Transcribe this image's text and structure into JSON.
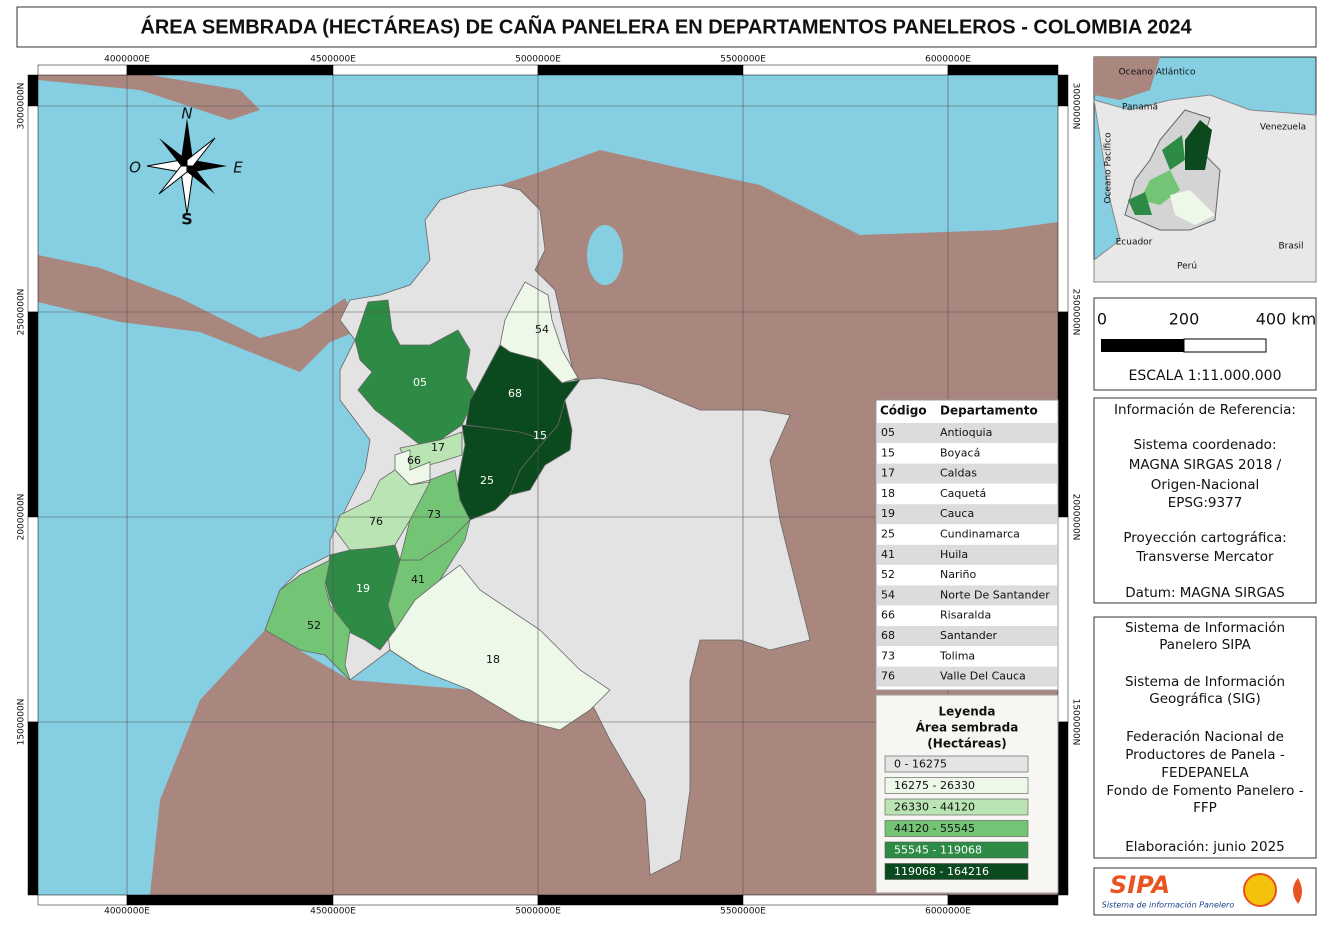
{
  "title": "ÁREA SEMBRADA (HECTÁREAS) DE CAÑA PANELERA EN DEPARTAMENTOS PANELEROS - COLOMBIA 2024",
  "map": {
    "grid_x_labels": [
      "4000000E",
      "4500000E",
      "5000000E",
      "5500000E",
      "6000000E"
    ],
    "grid_y_labels": [
      "3000000N",
      "2500000N",
      "2000000N",
      "1500000N"
    ],
    "compass": {
      "n": "N",
      "o": "O",
      "e": "E",
      "s": "S"
    },
    "region_labels": [
      "05",
      "15",
      "17",
      "18",
      "19",
      "25",
      "41",
      "52",
      "54",
      "66",
      "68",
      "73",
      "76"
    ]
  },
  "code_table": {
    "header": [
      "Código",
      "Departamento"
    ],
    "rows": [
      [
        "05",
        "Antioquia"
      ],
      [
        "15",
        "Boyacá"
      ],
      [
        "17",
        "Caldas"
      ],
      [
        "18",
        "Caquetá"
      ],
      [
        "19",
        "Cauca"
      ],
      [
        "25",
        "Cundinamarca"
      ],
      [
        "41",
        "Huila"
      ],
      [
        "52",
        "Nariño"
      ],
      [
        "54",
        "Norte De Santander"
      ],
      [
        "66",
        "Risaralda"
      ],
      [
        "68",
        "Santander"
      ],
      [
        "73",
        "Tolima"
      ],
      [
        "76",
        "Valle Del Cauca"
      ]
    ]
  },
  "legend": {
    "title": [
      "Leyenda",
      "Área sembrada",
      "(Hectáreas)"
    ],
    "classes": [
      {
        "label": "0 - 16275",
        "color": "#e4e4e4"
      },
      {
        "label": "16275 - 26330",
        "color": "#edf8e9"
      },
      {
        "label": "26330 - 44120",
        "color": "#bae4b3"
      },
      {
        "label": "44120 - 55545",
        "color": "#74c476"
      },
      {
        "label": "55545 - 119068",
        "color": "#2e8b45"
      },
      {
        "label": "119068 - 164216",
        "color": "#0b4a1e"
      }
    ]
  },
  "inset": {
    "labels": [
      "Oceano Atlántico",
      "Panamá",
      "Venezuela",
      "Oceano Pacífico",
      "Ecuador",
      "Brasil",
      "Perú"
    ]
  },
  "scale": {
    "ticks": [
      "0",
      "200",
      "400 km"
    ],
    "text": "ESCALA 1:11.000.000"
  },
  "reference": {
    "lines": [
      "Información de Referencia:",
      "Sistema coordenado:",
      "MAGNA SIRGAS 2018 /",
      "Origen-Nacional",
      "EPSG:9377",
      "Proyección cartográfica:",
      "Transverse Mercator",
      "Datum: MAGNA SIRGAS"
    ]
  },
  "sipa": {
    "lines": [
      "Sistema de Información",
      "Panelero SIPA",
      "Sistema de Información",
      "Geográfica (SIG)",
      "Federación Nacional de",
      "Productores de Panela -",
      "FEDEPANELA",
      "Fondo de Fomento Panelero -",
      "FFP",
      "Elaboración: junio 2025"
    ]
  },
  "logo": {
    "text": "SIPA",
    "subtitle": "Sistema de información Panelero"
  }
}
